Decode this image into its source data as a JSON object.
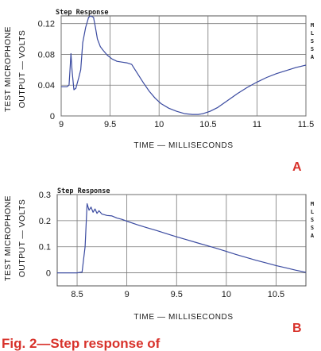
{
  "caption": "Fig. 2—Step response of",
  "chart_data": [
    {
      "type": "line",
      "title": "Step Response",
      "panel_label": "A",
      "side_text": "MLSSA",
      "ylabel_lines": [
        "TEST MICROPHONE",
        "OUTPUT — VOLTS"
      ],
      "xlabel": "TIME — MILLISECONDS",
      "xlim": [
        9,
        11.5
      ],
      "ylim": [
        0,
        0.13
      ],
      "xticks": [
        9,
        9.5,
        10,
        10.5,
        11,
        11.5
      ],
      "xtick_labels": [
        "9",
        "9.5",
        "10",
        "10.5",
        "11",
        "11.5"
      ],
      "yticks": [
        0,
        0.04,
        0.08,
        0.12
      ],
      "ytick_labels": [
        "0",
        "0.04",
        "0.08",
        "0.12"
      ],
      "grid": true,
      "series": [
        {
          "color": "#3a4aa0",
          "x": [
            9.0,
            9.06,
            9.08,
            9.09,
            9.1,
            9.11,
            9.13,
            9.15,
            9.18,
            9.2,
            9.22,
            9.25,
            9.28,
            9.3,
            9.33,
            9.35,
            9.37,
            9.4,
            9.43,
            9.47,
            9.52,
            9.57,
            9.62,
            9.67,
            9.72,
            9.78,
            9.84,
            9.9,
            9.96,
            10.02,
            10.1,
            10.18,
            10.26,
            10.34,
            10.4,
            10.45,
            10.52,
            10.6,
            10.7,
            10.8,
            10.9,
            11.0,
            11.1,
            11.2,
            11.3,
            11.4,
            11.5
          ],
          "y": [
            0.038,
            0.038,
            0.04,
            0.06,
            0.081,
            0.06,
            0.034,
            0.036,
            0.05,
            0.06,
            0.095,
            0.115,
            0.128,
            0.13,
            0.128,
            0.115,
            0.1,
            0.09,
            0.085,
            0.079,
            0.074,
            0.071,
            0.07,
            0.069,
            0.067,
            0.055,
            0.043,
            0.032,
            0.023,
            0.016,
            0.01,
            0.006,
            0.003,
            0.002,
            0.002,
            0.003,
            0.006,
            0.011,
            0.02,
            0.029,
            0.037,
            0.044,
            0.05,
            0.055,
            0.059,
            0.063,
            0.066
          ]
        }
      ]
    },
    {
      "type": "line",
      "title": "Step Response",
      "panel_label": "B",
      "side_text": "MLSSA",
      "ylabel_lines": [
        "TEST MICROPHONE",
        "OUTPUT — VOLTS"
      ],
      "xlabel": "TIME — MILLISECONDS",
      "xlim": [
        8.3,
        10.8
      ],
      "ylim": [
        -0.05,
        0.3
      ],
      "xticks": [
        8.5,
        9,
        9.5,
        10,
        10.5
      ],
      "xtick_labels": [
        "8.5",
        "9",
        "9.5",
        "10",
        "10.5"
      ],
      "yticks": [
        0,
        0.1,
        0.2,
        0.3
      ],
      "ytick_labels": [
        "0",
        "0.1",
        "0.2",
        "0.3"
      ],
      "grid": true,
      "series": [
        {
          "color": "#3a4aa0",
          "x": [
            8.3,
            8.5,
            8.55,
            8.58,
            8.6,
            8.62,
            8.64,
            8.66,
            8.68,
            8.7,
            8.72,
            8.75,
            8.8,
            8.85,
            8.9,
            8.95,
            9.0,
            9.1,
            9.2,
            9.3,
            9.4,
            9.5,
            9.6,
            9.7,
            9.8,
            9.9,
            10.0,
            10.1,
            10.2,
            10.3,
            10.4,
            10.5,
            10.6,
            10.7,
            10.8
          ],
          "y": [
            0.0,
            0.0,
            0.003,
            0.1,
            0.265,
            0.24,
            0.252,
            0.232,
            0.245,
            0.228,
            0.238,
            0.225,
            0.22,
            0.218,
            0.21,
            0.205,
            0.198,
            0.185,
            0.173,
            0.162,
            0.15,
            0.138,
            0.127,
            0.116,
            0.105,
            0.094,
            0.082,
            0.07,
            0.059,
            0.048,
            0.038,
            0.028,
            0.019,
            0.01,
            0.002
          ]
        }
      ]
    }
  ]
}
